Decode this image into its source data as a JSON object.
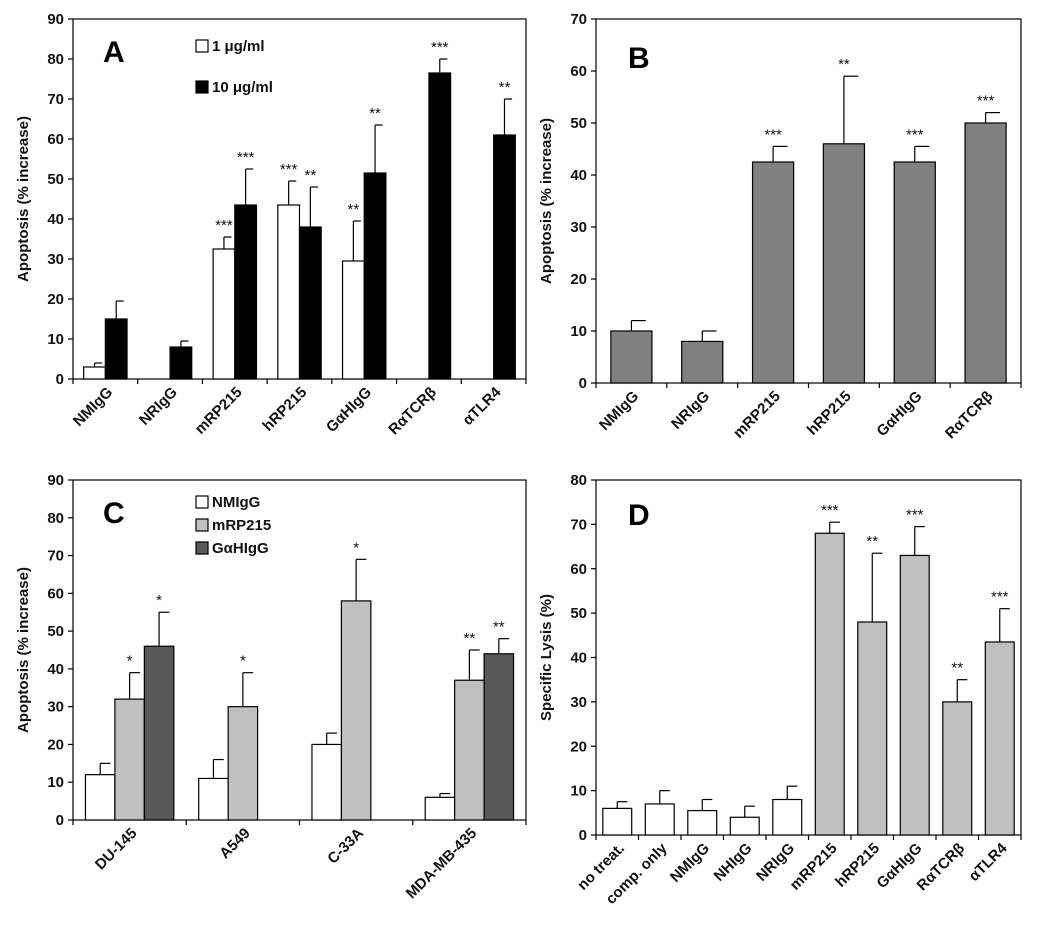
{
  "colors": {
    "white_bar": "#ffffff",
    "black_bar": "#000000",
    "gray_bar": "#808080",
    "light_gray_bar": "#c0c0c0",
    "dark_gray_bar": "#595959",
    "axis": "#000000"
  },
  "chart_data": [
    {
      "panel": "A",
      "type": "bar",
      "ylabel": "Apoptosis (% increase)",
      "ylim": [
        0,
        90
      ],
      "yticks": [
        0,
        10,
        20,
        30,
        40,
        50,
        60,
        70,
        80,
        90
      ],
      "categories": [
        "NMIgG",
        "NRIgG",
        "mRP215",
        "hRP215",
        "GαHIgG",
        "RαTCRβ",
        "αTLR4"
      ],
      "legend_position": "top-center",
      "series": [
        {
          "name": "1 μg/ml",
          "color": "#ffffff",
          "values": [
            3,
            null,
            32.5,
            43.5,
            29.5,
            null,
            null
          ],
          "errors": [
            1,
            null,
            3,
            6,
            10,
            null,
            null
          ],
          "significance": [
            "",
            "",
            "***",
            "***",
            "**",
            "",
            ""
          ]
        },
        {
          "name": "10 μg/ml",
          "color": "#000000",
          "values": [
            15,
            8,
            43.5,
            38,
            51.5,
            76.5,
            61
          ],
          "errors": [
            4.5,
            1.5,
            9,
            10,
            12,
            3.5,
            9
          ],
          "significance": [
            "",
            "",
            "***",
            "**",
            "**",
            "***",
            "**"
          ]
        }
      ]
    },
    {
      "panel": "B",
      "type": "bar",
      "ylabel": "Apoptosis (% increase)",
      "ylim": [
        0,
        70
      ],
      "yticks": [
        0,
        10,
        20,
        30,
        40,
        50,
        60,
        70
      ],
      "categories": [
        "NMIgG",
        "NRIgG",
        "mRP215",
        "hRP215",
        "GαHIgG",
        "RαTCRβ"
      ],
      "series": [
        {
          "name": "",
          "color": "#808080",
          "values": [
            10,
            8,
            42.5,
            46,
            42.5,
            50
          ],
          "errors": [
            2,
            2,
            3,
            13,
            3,
            2
          ],
          "significance": [
            "",
            "",
            "***",
            "**",
            "***",
            "***"
          ]
        }
      ]
    },
    {
      "panel": "C",
      "type": "bar",
      "ylabel": "Apoptosis (% increase)",
      "ylim": [
        0,
        90
      ],
      "yticks": [
        0,
        10,
        20,
        30,
        40,
        50,
        60,
        70,
        80,
        90
      ],
      "categories": [
        "DU-145",
        "A549",
        "C-33A",
        "MDA-MB-435"
      ],
      "legend_position": "top-left",
      "series": [
        {
          "name": "NMIgG",
          "color": "#ffffff",
          "values": [
            12,
            11,
            20,
            6
          ],
          "errors": [
            3,
            5,
            3,
            1
          ],
          "significance": [
            "",
            "",
            "",
            ""
          ]
        },
        {
          "name": "mRP215",
          "color": "#c0c0c0",
          "values": [
            32,
            30,
            58,
            37
          ],
          "errors": [
            7,
            9,
            11,
            8
          ],
          "significance": [
            "*",
            "*",
            "*",
            "**"
          ]
        },
        {
          "name": "GαHIgG",
          "color": "#595959",
          "values": [
            46,
            null,
            null,
            44
          ],
          "errors": [
            9,
            null,
            null,
            4
          ],
          "significance": [
            "*",
            "",
            "",
            "**"
          ]
        }
      ]
    },
    {
      "panel": "D",
      "type": "bar",
      "ylabel": "Specific Lysis (%)",
      "ylim": [
        0,
        80
      ],
      "yticks": [
        0,
        10,
        20,
        30,
        40,
        50,
        60,
        70,
        80
      ],
      "categories": [
        "no treat.",
        "comp. only",
        "NMIgG",
        "NHIgG",
        "NRIgG",
        "mRP215",
        "hRP215",
        "GαHIgG",
        "RαTCRβ",
        "αTLR4"
      ],
      "series": [
        {
          "name": "",
          "values": [
            6,
            7,
            5.5,
            4,
            8,
            68,
            48,
            63,
            30,
            43.5
          ],
          "errors": [
            1.5,
            3,
            2.5,
            2.5,
            3,
            2.5,
            15.5,
            6.5,
            5,
            7.5
          ],
          "colors": [
            "#ffffff",
            "#ffffff",
            "#ffffff",
            "#ffffff",
            "#ffffff",
            "#c0c0c0",
            "#c0c0c0",
            "#c0c0c0",
            "#c0c0c0",
            "#c0c0c0"
          ],
          "significance": [
            "",
            "",
            "",
            "",
            "",
            "***",
            "**",
            "***",
            "**",
            "***"
          ]
        }
      ]
    }
  ]
}
